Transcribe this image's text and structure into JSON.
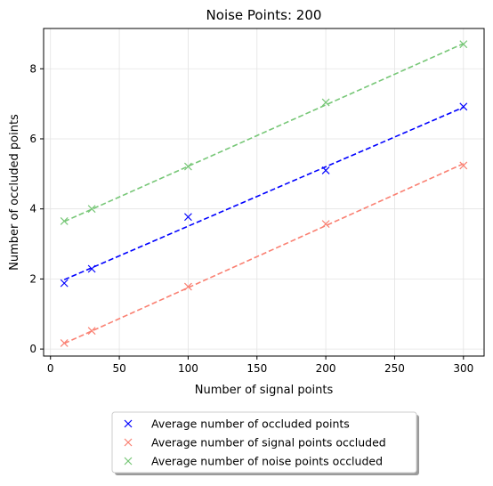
{
  "chart_data": {
    "type": "scatter",
    "title": "Noise Points: 200",
    "xlabel": "Number of signal points",
    "ylabel": "Number of occluded points",
    "xlim": [
      -5,
      315
    ],
    "ylim": [
      -0.2,
      9.15
    ],
    "xticks": [
      0,
      50,
      100,
      150,
      200,
      250,
      300
    ],
    "yticks": [
      0,
      2,
      4,
      6,
      8
    ],
    "grid": true,
    "legend_position": "bottom-center, below plot",
    "series": [
      {
        "name": "Average number of occluded points",
        "color": "#0000ff",
        "marker": "x",
        "x": [
          10,
          30,
          100,
          200,
          300
        ],
        "y": [
          1.88,
          2.29,
          3.77,
          5.1,
          6.92
        ],
        "fit": {
          "style": "dashed",
          "x": [
            10,
            300
          ],
          "y": [
            1.98,
            6.9
          ]
        }
      },
      {
        "name": "Average number of signal points occluded",
        "color": "#fa8072",
        "marker": "x",
        "x": [
          10,
          30,
          100,
          200,
          300
        ],
        "y": [
          0.17,
          0.52,
          1.78,
          3.57,
          5.24
        ],
        "fit": {
          "style": "dashed",
          "x": [
            10,
            300
          ],
          "y": [
            0.16,
            5.29
          ]
        }
      },
      {
        "name": "Average number of noise points occluded",
        "color": "#77c777",
        "marker": "x",
        "x": [
          10,
          30,
          100,
          200,
          300
        ],
        "y": [
          3.65,
          4.0,
          5.21,
          7.04,
          8.7
        ],
        "fit": {
          "style": "dashed",
          "x": [
            10,
            300
          ],
          "y": [
            3.64,
            8.72
          ]
        }
      }
    ]
  }
}
